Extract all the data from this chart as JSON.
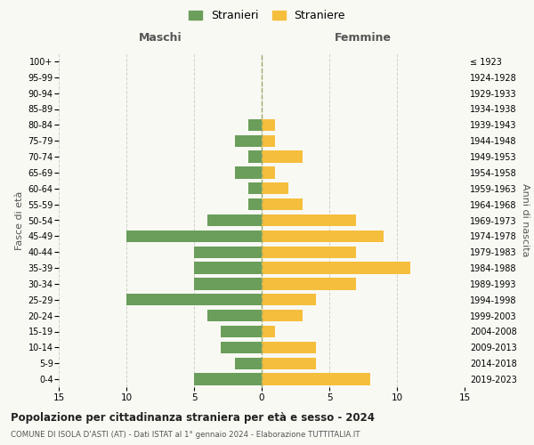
{
  "age_groups": [
    "0-4",
    "5-9",
    "10-14",
    "15-19",
    "20-24",
    "25-29",
    "30-34",
    "35-39",
    "40-44",
    "45-49",
    "50-54",
    "55-59",
    "60-64",
    "65-69",
    "70-74",
    "75-79",
    "80-84",
    "85-89",
    "90-94",
    "95-99",
    "100+"
  ],
  "birth_years": [
    "2019-2023",
    "2014-2018",
    "2009-2013",
    "2004-2008",
    "1999-2003",
    "1994-1998",
    "1989-1993",
    "1984-1988",
    "1979-1983",
    "1974-1978",
    "1969-1973",
    "1964-1968",
    "1959-1963",
    "1954-1958",
    "1949-1953",
    "1944-1948",
    "1939-1943",
    "1934-1938",
    "1929-1933",
    "1924-1928",
    "≤ 1923"
  ],
  "males": [
    5,
    2,
    3,
    3,
    4,
    10,
    5,
    5,
    5,
    10,
    4,
    1,
    1,
    2,
    1,
    2,
    1,
    0,
    0,
    0,
    0
  ],
  "females": [
    8,
    4,
    4,
    1,
    3,
    4,
    7,
    11,
    7,
    9,
    7,
    3,
    2,
    1,
    3,
    1,
    1,
    0,
    0,
    0,
    0
  ],
  "male_color": "#6a9e5a",
  "female_color": "#f5be3c",
  "background_color": "#f9f9f4",
  "grid_color": "#d0d0c8",
  "center_line_color": "#9aaa6a",
  "xlim": 15,
  "xtick_labels": [
    "15",
    "10",
    "5",
    "0",
    "5",
    "10",
    "15"
  ],
  "title": "Popolazione per cittadinanza straniera per età e sesso - 2024",
  "subtitle": "COMUNE DI ISOLA D'ASTI (AT) - Dati ISTAT al 1° gennaio 2024 - Elaborazione TUTTITALIA.IT",
  "legend_stranieri": "Stranieri",
  "legend_straniere": "Straniere",
  "left_header": "Maschi",
  "right_header": "Femmine",
  "ylabel_left": "Fasce di età",
  "ylabel_right": "Anni di nascita"
}
